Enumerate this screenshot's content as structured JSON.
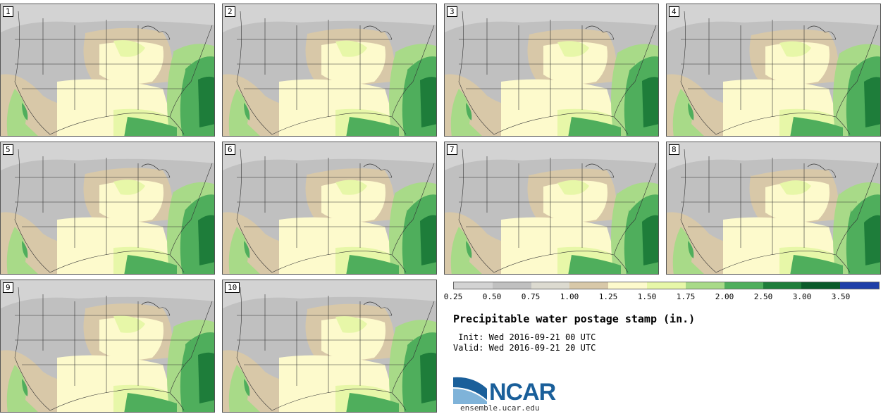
{
  "stamps": [
    {
      "label": "1"
    },
    {
      "label": "2"
    },
    {
      "label": "3"
    },
    {
      "label": "4"
    },
    {
      "label": "5"
    },
    {
      "label": "6"
    },
    {
      "label": "7"
    },
    {
      "label": "8"
    },
    {
      "label": "9"
    },
    {
      "label": "10"
    }
  ],
  "colorbar": {
    "colors": [
      "#d3d3d3",
      "#c0c0c0",
      "#dcdad0",
      "#d8c8a8",
      "#fdfacc",
      "#e7f7a8",
      "#a8da88",
      "#4fae5c",
      "#1e7d3a",
      "#0b5a2a",
      "#1f3fa8"
    ],
    "ticks": [
      "0.25",
      "0.50",
      "0.75",
      "1.00",
      "1.25",
      "1.50",
      "1.75",
      "2.00",
      "2.50",
      "3.00",
      "3.50"
    ]
  },
  "title": "Precipitable water postage stamp (in.)",
  "init_text": " Init: Wed 2016-09-21 00 UTC",
  "valid_text": "Valid: Wed 2016-09-21 20 UTC",
  "logo": {
    "name": "NCAR",
    "url": "ensemble.ucar.edu"
  }
}
